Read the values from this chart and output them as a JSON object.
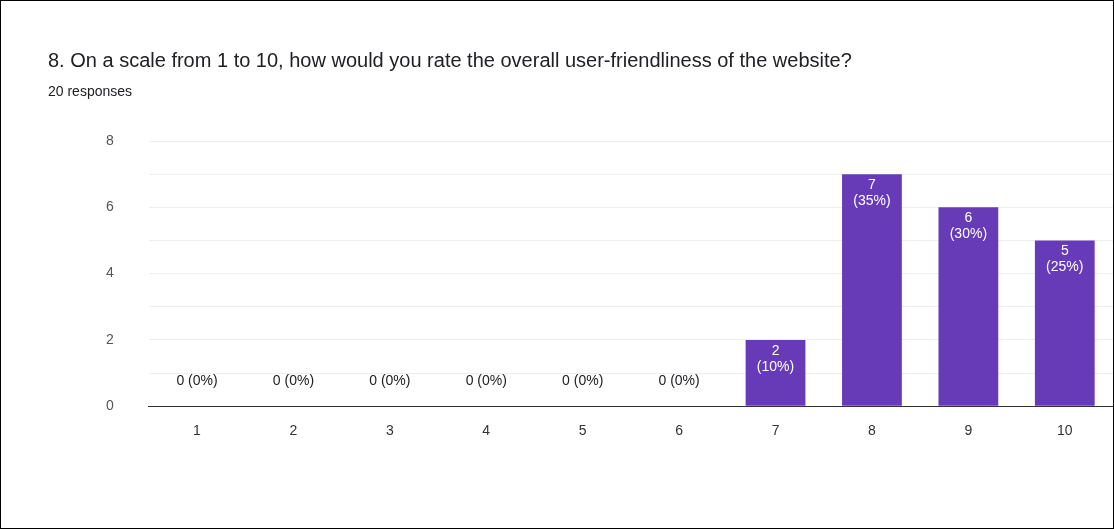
{
  "chart_data": {
    "type": "bar",
    "title": "8.  On a scale from 1 to 10, how would you rate the overall user-friendliness of the website?",
    "subtitle": "20 responses",
    "categories": [
      "1",
      "2",
      "3",
      "4",
      "5",
      "6",
      "7",
      "8",
      "9",
      "10"
    ],
    "values": [
      0,
      0,
      0,
      0,
      0,
      0,
      2,
      7,
      6,
      5
    ],
    "value_labels": [
      "0 (0%)",
      "0 (0%)",
      "0 (0%)",
      "0 (0%)",
      "0 (0%)",
      "0 (0%)",
      "2 (10%)",
      "7 (35%)",
      "6 (30%)",
      "5 (25%)"
    ],
    "color": "#673ab7",
    "ylim": [
      0,
      8
    ],
    "yticks": [
      0,
      {
        "value": 1,
        "label": null
      },
      2,
      {
        "value": 3,
        "label": null
      },
      4,
      {
        "value": 5,
        "label": null
      },
      6,
      {
        "value": 7,
        "label": null
      },
      8
    ],
    "grid": "y",
    "legend": false
  }
}
